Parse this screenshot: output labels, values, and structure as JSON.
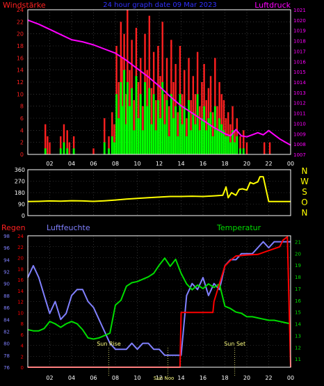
{
  "colors": {
    "background": "#000000",
    "frame": "#ffffff",
    "grid": "#555555",
    "wind_speed": "#ff2020",
    "wind_gust": "#00ff00",
    "pressure": "#ff00ff",
    "direction": "#ffff00",
    "rain": "#ff0000",
    "humidity": "#8080ff",
    "temperature": "#00dd00",
    "sun_markers": "#ffff80",
    "tick_text": "#ffffff"
  },
  "top_panel": {
    "title": "24 hour graph date  09 Mar 2023",
    "left_label": "Windstärke",
    "right_label": "Luftdruck"
  },
  "dir_panel": {
    "compass": [
      "N",
      "W",
      "S",
      "O",
      "N"
    ]
  },
  "bottom_panel": {
    "rain_label": "Regen",
    "humidity_label": "Luftfeuchte",
    "temperature_label": "Temperatur",
    "sunrise_label": "Sun Rise",
    "sunset_label": "Sun Set",
    "sunnoon_label": "Sun Noo"
  },
  "chart_data": [
    {
      "type": "bar",
      "title": "24 hour graph date  09 Mar 2023",
      "xticks": [
        "02",
        "04",
        "06",
        "08",
        "10",
        "12",
        "14",
        "16",
        "18",
        "20",
        "22",
        "00"
      ],
      "xlim": [
        0,
        24
      ],
      "ylabel_left": "Windstärke",
      "ylim_left": [
        0,
        24
      ],
      "yticks_left": [
        0,
        2,
        4,
        6,
        8,
        10,
        12,
        14,
        16,
        18,
        20,
        22,
        24
      ],
      "ylabel_right": "Luftdruck",
      "ylim_right": [
        1007,
        1021
      ],
      "yticks_right": [
        1007,
        1008,
        1009,
        1010,
        1011,
        1012,
        1013,
        1014,
        1015,
        1016,
        1017,
        1018,
        1019,
        1020,
        1021
      ],
      "series": [
        {
          "name": "Windstärke (gust)",
          "axis": "left",
          "x": [
            1.6,
            1.8,
            2.0,
            3.0,
            3.3,
            3.6,
            3.8,
            4.2,
            6.0,
            7.0,
            7.4,
            7.7,
            7.9,
            8.1,
            8.3,
            8.5,
            8.6,
            8.8,
            9.0,
            9.1,
            9.3,
            9.5,
            9.7,
            9.9,
            10.1,
            10.3,
            10.5,
            10.7,
            10.9,
            11.1,
            11.3,
            11.5,
            11.7,
            11.9,
            12.1,
            12.3,
            12.5,
            12.7,
            12.9,
            13.1,
            13.3,
            13.5,
            13.7,
            13.9,
            14.1,
            14.3,
            14.5,
            14.7,
            14.9,
            15.1,
            15.3,
            15.5,
            15.7,
            15.9,
            16.1,
            16.3,
            16.5,
            16.7,
            16.9,
            17.1,
            17.3,
            17.5,
            17.7,
            17.9,
            18.1,
            18.3,
            18.5,
            18.7,
            18.9,
            19.1,
            19.4,
            19.7,
            20.0,
            21.6,
            22.1
          ],
          "values": [
            5,
            3,
            2,
            3,
            5,
            4,
            2,
            3,
            1,
            6,
            3,
            7,
            5,
            18,
            12,
            22,
            16,
            20,
            10,
            24,
            14,
            19,
            9,
            21,
            12,
            16,
            8,
            20,
            14,
            23,
            11,
            17,
            9,
            18,
            13,
            22,
            10,
            16,
            8,
            19,
            12,
            15,
            7,
            18,
            10,
            14,
            6,
            16,
            9,
            13,
            10,
            17,
            8,
            12,
            15,
            9,
            11,
            13,
            7,
            16,
            8,
            12,
            10,
            9,
            6,
            7,
            5,
            8,
            4,
            6,
            3,
            4,
            2,
            2,
            2
          ]
        },
        {
          "name": "Windstärke",
          "axis": "left",
          "x": [
            1.6,
            1.8,
            2.0,
            3.0,
            3.3,
            3.6,
            3.8,
            4.2,
            6.0,
            7.0,
            7.4,
            7.7,
            7.9,
            8.1,
            8.3,
            8.5,
            8.6,
            8.8,
            9.0,
            9.1,
            9.3,
            9.5,
            9.7,
            9.9,
            10.1,
            10.3,
            10.5,
            10.7,
            10.9,
            11.1,
            11.3,
            11.5,
            11.7,
            11.9,
            12.1,
            12.3,
            12.5,
            12.7,
            12.9,
            13.1,
            13.3,
            13.5,
            13.7,
            13.9,
            14.1,
            14.3,
            14.5,
            14.7,
            14.9,
            15.1,
            15.3,
            15.5,
            15.7,
            15.9,
            16.1,
            16.3,
            16.5,
            16.7,
            16.9,
            17.1,
            17.3,
            17.5,
            17.7,
            17.9,
            18.1,
            18.3,
            18.5,
            18.7,
            18.9,
            19.1,
            19.4,
            19.7,
            20.0,
            21.6,
            22.1
          ],
          "values": [
            1,
            0,
            0,
            1,
            2,
            1,
            0,
            1,
            0,
            2,
            1,
            3,
            2,
            10,
            6,
            12,
            8,
            14,
            5,
            12,
            8,
            11,
            4,
            13,
            6,
            10,
            4,
            12,
            8,
            11,
            5,
            10,
            4,
            9,
            6,
            12,
            5,
            9,
            3,
            10,
            6,
            8,
            3,
            10,
            5,
            8,
            3,
            9,
            4,
            7,
            5,
            10,
            4,
            6,
            8,
            4,
            6,
            7,
            3,
            8,
            4,
            6,
            5,
            4,
            3,
            3,
            2,
            4,
            2,
            3,
            1,
            1,
            0,
            0,
            0
          ]
        },
        {
          "name": "Luftdruck",
          "type": "line",
          "axis": "right",
          "x": [
            0,
            1,
            2,
            3,
            4,
            5,
            6,
            7,
            8,
            9,
            10,
            11,
            12,
            13,
            14,
            15,
            16,
            17,
            18,
            18.5,
            19,
            19.5,
            20,
            20.5,
            21,
            21.5,
            22,
            22.5,
            23,
            23.5,
            24
          ],
          "values": [
            1020,
            1019.6,
            1019.1,
            1018.6,
            1018.1,
            1017.9,
            1017.6,
            1017.2,
            1016.8,
            1016.1,
            1015.3,
            1014.5,
            1013.6,
            1012.6,
            1011.7,
            1011.0,
            1010.3,
            1009.6,
            1009.0,
            1008.8,
            1009.4,
            1008.8,
            1008.7,
            1008.9,
            1009.1,
            1008.9,
            1009.3,
            1008.9,
            1008.5,
            1008.2,
            1007.9
          ]
        }
      ]
    },
    {
      "type": "line",
      "xlim": [
        0,
        24
      ],
      "ylim": [
        0,
        360
      ],
      "yticks": [
        0,
        90,
        180,
        270,
        360
      ],
      "series": [
        {
          "name": "Windrichtung",
          "x": [
            0,
            1,
            2,
            3,
            4,
            5,
            6,
            7,
            8,
            9,
            10,
            11,
            12,
            13,
            14,
            15,
            16,
            17,
            17.8,
            18.1,
            18.3,
            18.6,
            19.0,
            19.3,
            19.6,
            20.0,
            20.3,
            20.6,
            21.0,
            21.2,
            21.5,
            22.0,
            23.0,
            24.0
          ],
          "values": [
            110,
            112,
            115,
            113,
            117,
            115,
            112,
            116,
            122,
            130,
            135,
            140,
            145,
            150,
            150,
            152,
            150,
            155,
            160,
            225,
            140,
            180,
            160,
            205,
            210,
            200,
            260,
            250,
            265,
            305,
            305,
            110,
            110,
            110
          ]
        }
      ]
    },
    {
      "type": "line",
      "xlim": [
        0,
        24
      ],
      "yticks_rain": [
        0,
        2,
        4,
        6,
        8,
        10,
        12,
        14,
        16,
        18,
        20,
        22,
        24
      ],
      "ylim_rain": [
        0,
        24
      ],
      "yticks_humidity": [
        76,
        78,
        80,
        82,
        84,
        86,
        88,
        90,
        92,
        94,
        96,
        98
      ],
      "ylim_humidity": [
        76,
        98
      ],
      "yticks_temperature": [
        11,
        12,
        13,
        14,
        15,
        16,
        17,
        18,
        19,
        20,
        21
      ],
      "ylim_temperature": [
        10.3,
        21.5
      ],
      "sunrise_hour": 7.4,
      "sunnoon_hour": 12.8,
      "sunset_hour": 18.9,
      "series": [
        {
          "name": "Regen",
          "axis": "rain",
          "x": [
            0,
            13.9,
            14.0,
            16.9,
            17.0,
            18.0,
            18.5,
            19.0,
            20.0,
            21.0,
            22.0,
            23.0,
            23.3,
            23.7,
            24.0
          ],
          "values": [
            0,
            0,
            10,
            10,
            12,
            18.5,
            19.5,
            20.3,
            20.5,
            20.6,
            21.3,
            22.0,
            23.2,
            23.8,
            0
          ]
        },
        {
          "name": "Luftfeuchte",
          "axis": "humidity",
          "x": [
            0,
            0.5,
            1.0,
            1.5,
            2.0,
            2.5,
            3.0,
            3.5,
            4.0,
            4.5,
            5.0,
            5.5,
            6.0,
            6.5,
            7.0,
            7.5,
            8.0,
            8.5,
            9.0,
            9.5,
            10.0,
            10.5,
            11.0,
            11.5,
            12.0,
            12.5,
            13.0,
            13.5,
            14.0,
            14.5,
            15.0,
            15.5,
            16.0,
            16.5,
            17.0,
            17.5,
            18.0,
            18.5,
            19.0,
            19.5,
            20.0,
            20.5,
            21.0,
            21.5,
            22.0,
            22.5,
            23.0,
            23.5,
            24.0
          ],
          "values": [
            91,
            93,
            91,
            88,
            85,
            87,
            84,
            85,
            88,
            89,
            89,
            87,
            86,
            84,
            82,
            80,
            79,
            79,
            79,
            80,
            79,
            80,
            80,
            79,
            79,
            78,
            78,
            78,
            78,
            88,
            90,
            89,
            91,
            88,
            90,
            89,
            93,
            94,
            94,
            95,
            95,
            95,
            96,
            97,
            96,
            97,
            97,
            97,
            97
          ]
        },
        {
          "name": "Temperatur",
          "axis": "temperature",
          "x": [
            0,
            0.5,
            1.0,
            1.5,
            2.0,
            2.5,
            3.0,
            3.5,
            4.0,
            4.5,
            5.0,
            5.5,
            6.0,
            6.5,
            7.0,
            7.5,
            8.0,
            8.5,
            9.0,
            9.5,
            10.0,
            10.5,
            11.0,
            11.5,
            12.0,
            12.5,
            13.0,
            13.5,
            14.0,
            14.5,
            15.0,
            15.5,
            16.0,
            16.5,
            17.0,
            17.5,
            18.0,
            18.5,
            19.0,
            19.5,
            20.0,
            20.5,
            21.0,
            21.5,
            22.0,
            22.5,
            23.0,
            23.5,
            24.0
          ],
          "values": [
            13.5,
            13.4,
            13.4,
            13.6,
            14.2,
            14.0,
            13.7,
            14.0,
            14.2,
            14.0,
            13.5,
            12.8,
            12.7,
            12.8,
            13.0,
            13.2,
            15.6,
            16.0,
            17.2,
            17.5,
            17.6,
            17.8,
            18.0,
            18.3,
            19.0,
            19.6,
            18.9,
            19.5,
            18.3,
            17.4,
            16.9,
            17.3,
            17.0,
            17.4,
            17.1,
            17.4,
            15.5,
            15.3,
            15.0,
            14.9,
            14.6,
            14.6,
            14.5,
            14.4,
            14.3,
            14.3,
            14.2,
            14.1,
            14.0
          ]
        }
      ]
    }
  ]
}
